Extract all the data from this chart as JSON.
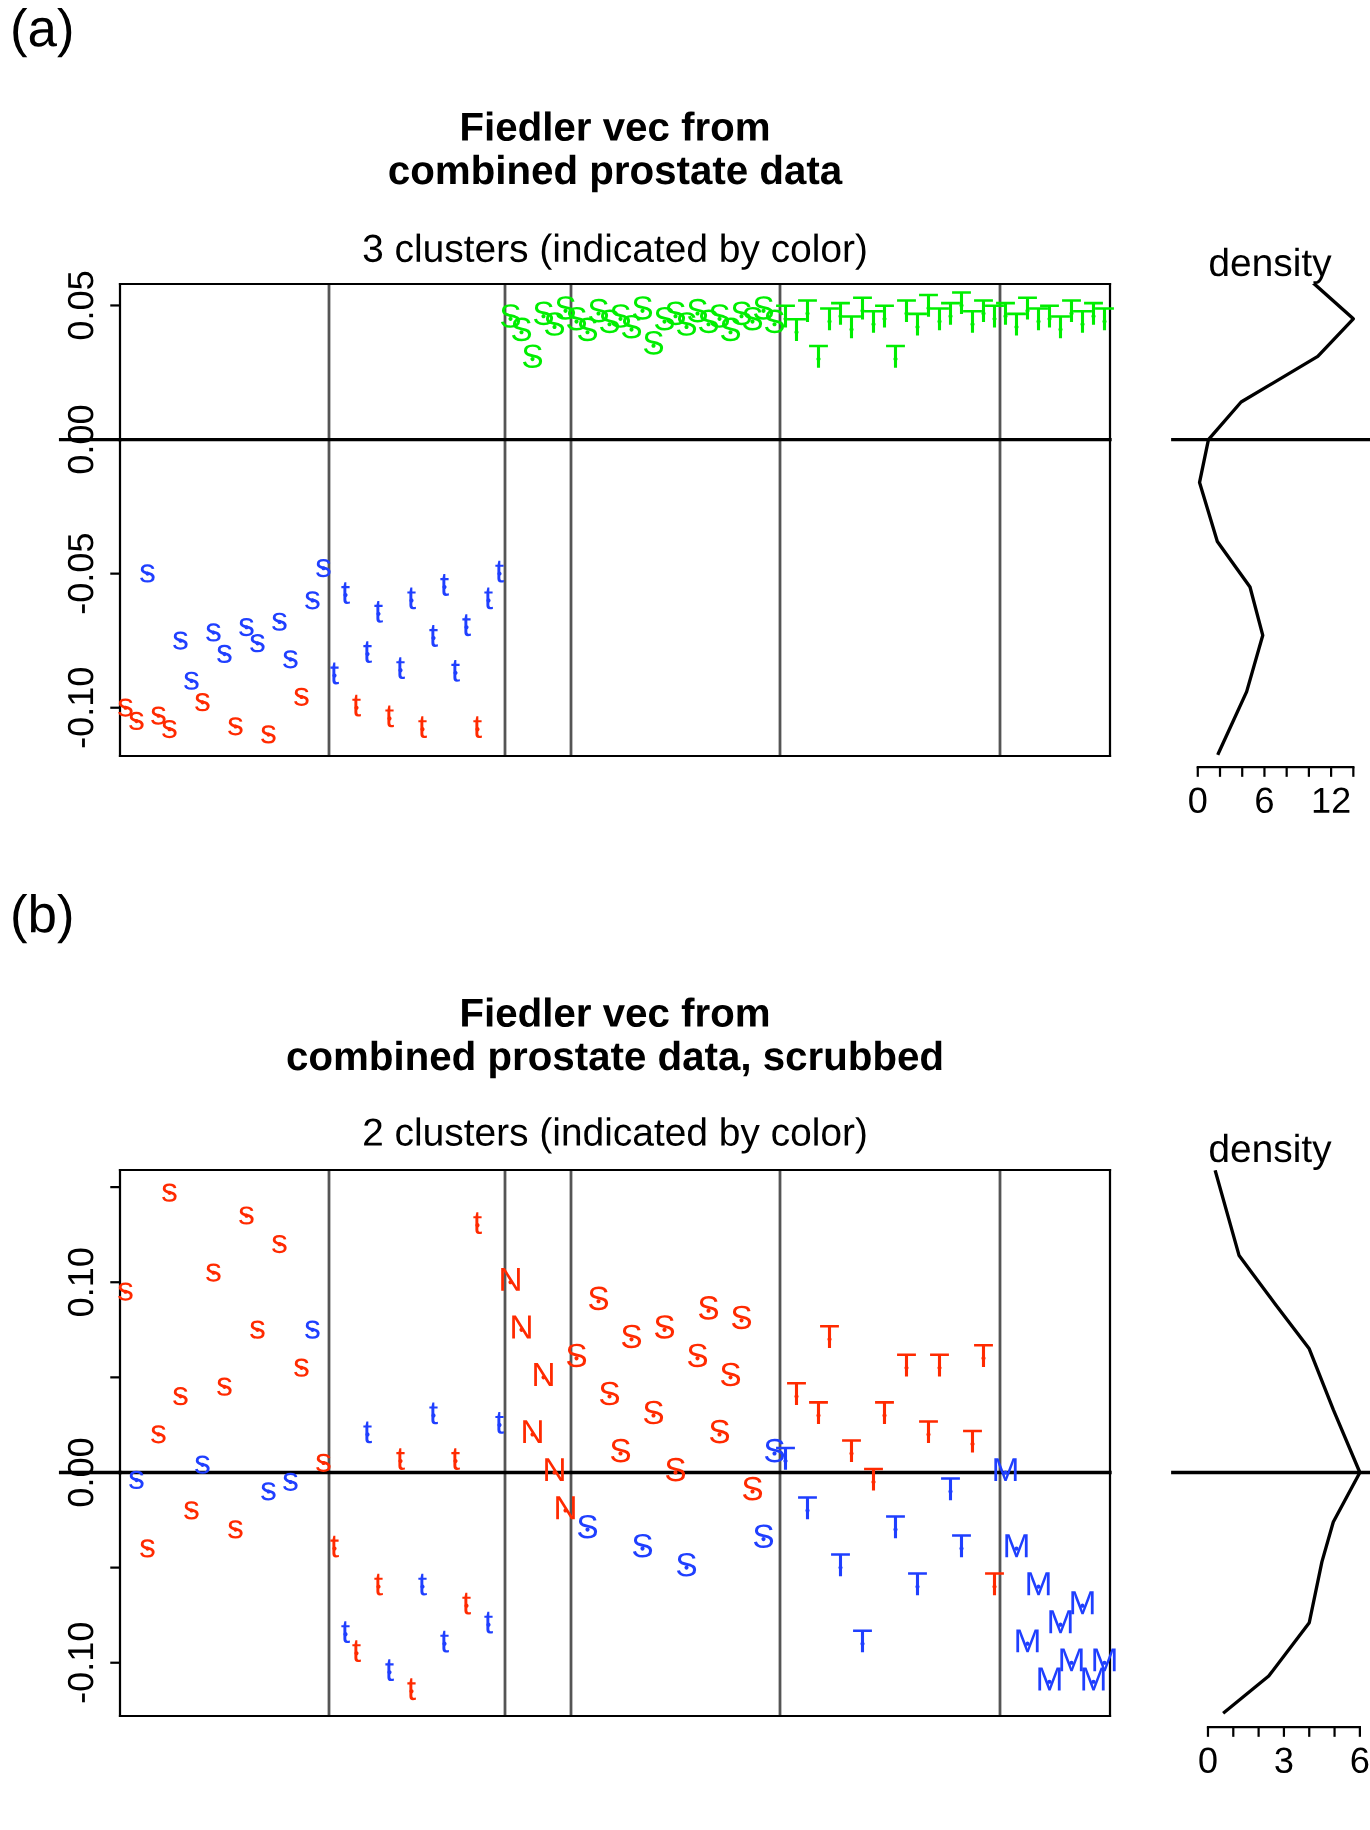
{
  "chart_data": [
    {
      "type": "scatter",
      "title": "Fiedler vec from\ncombined prostate data",
      "subtitle": "3 clusters (indicated by color)",
      "annotations": [
        "(a)"
      ],
      "categories": [
        null,
        null,
        null,
        null,
        null,
        null,
        null,
        null,
        null,
        null,
        null,
        null,
        null,
        null,
        null,
        null,
        null,
        null,
        null,
        null,
        null,
        null,
        null,
        null,
        null,
        null,
        null,
        null,
        null,
        null,
        null,
        null,
        null,
        null,
        null,
        null,
        null,
        null,
        null,
        null,
        null,
        null,
        null,
        null,
        null,
        null,
        null,
        null,
        null,
        null,
        null,
        null,
        null,
        null,
        null,
        null,
        null,
        null,
        null,
        null,
        null,
        null,
        null,
        null,
        null,
        null,
        null,
        null,
        null,
        null,
        null,
        null,
        null,
        null,
        null,
        null,
        null,
        null,
        null,
        null,
        null,
        null,
        null,
        null,
        null,
        null,
        null,
        null,
        null,
        null
      ],
      "values": [
        -0.1,
        -0.105,
        -0.05,
        -0.103,
        -0.108,
        -0.075,
        -0.09,
        -0.098,
        -0.072,
        -0.08,
        -0.107,
        -0.07,
        -0.076,
        -0.11,
        -0.068,
        -0.082,
        -0.096,
        -0.06,
        -0.048,
        -0.088,
        -0.058,
        -0.1,
        -0.08,
        -0.065,
        -0.104,
        -0.086,
        -0.06,
        -0.108,
        -0.074,
        -0.055,
        -0.087,
        -0.07,
        -0.108,
        -0.06,
        -0.05,
        0.045,
        0.04,
        0.03,
        0.046,
        0.042,
        0.048,
        0.044,
        0.04,
        0.047,
        0.043,
        0.045,
        0.041,
        0.048,
        0.035,
        0.044,
        0.046,
        0.042,
        0.047,
        0.043,
        0.045,
        0.04,
        0.046,
        0.044,
        0.048,
        0.043,
        0.045,
        0.04,
        0.047,
        0.03,
        0.044,
        0.046,
        0.041,
        0.048,
        0.043,
        0.045,
        0.03,
        0.047,
        0.042,
        0.049,
        0.044,
        0.046,
        0.05,
        0.043,
        0.047,
        0.045,
        0.046,
        0.042,
        0.048,
        0.044,
        0.045,
        0.041,
        0.047,
        0.043,
        0.046,
        0.044
      ],
      "colors": [
        "#ff2a00",
        "#ff2a00",
        "#1f3fff",
        "#ff2a00",
        "#ff2a00",
        "#1f3fff",
        "#1f3fff",
        "#ff2a00",
        "#1f3fff",
        "#1f3fff",
        "#ff2a00",
        "#1f3fff",
        "#1f3fff",
        "#ff2a00",
        "#1f3fff",
        "#1f3fff",
        "#ff2a00",
        "#1f3fff",
        "#1f3fff",
        "#1f3fff",
        "#1f3fff",
        "#ff2a00",
        "#1f3fff",
        "#1f3fff",
        "#ff2a00",
        "#1f3fff",
        "#1f3fff",
        "#ff2a00",
        "#1f3fff",
        "#1f3fff",
        "#1f3fff",
        "#1f3fff",
        "#ff2a00",
        "#1f3fff",
        "#1f3fff",
        "#00ee00",
        "#00ee00",
        "#00ee00",
        "#00ee00",
        "#00ee00",
        "#00ee00",
        "#00ee00",
        "#00ee00",
        "#00ee00",
        "#00ee00",
        "#00ee00",
        "#00ee00",
        "#00ee00",
        "#00ee00",
        "#00ee00",
        "#00ee00",
        "#00ee00",
        "#00ee00",
        "#00ee00",
        "#00ee00",
        "#00ee00",
        "#00ee00",
        "#00ee00",
        "#00ee00",
        "#00ee00",
        "#00ee00",
        "#00ee00",
        "#00ee00",
        "#00ee00",
        "#00ee00",
        "#00ee00",
        "#00ee00",
        "#00ee00",
        "#00ee00",
        "#00ee00",
        "#00ee00",
        "#00ee00",
        "#00ee00",
        "#00ee00",
        "#00ee00",
        "#00ee00",
        "#00ee00",
        "#00ee00",
        "#00ee00",
        "#00ee00",
        "#00ee00",
        "#00ee00",
        "#00ee00",
        "#00ee00",
        "#00ee00",
        "#00ee00",
        "#00ee00",
        "#00ee00",
        "#00ee00",
        "#00ee00"
      ],
      "value_labels": [
        "s",
        "s",
        "s",
        "s",
        "s",
        "s",
        "s",
        "s",
        "s",
        "s",
        "s",
        "s",
        "s",
        "s",
        "s",
        "s",
        "s",
        "s",
        "s",
        "t",
        "t",
        "t",
        "t",
        "t",
        "t",
        "t",
        "t",
        "t",
        "t",
        "t",
        "t",
        "t",
        "t",
        "t",
        "t",
        "S",
        "S",
        "S",
        "S",
        "S",
        "S",
        "S",
        "S",
        "S",
        "S",
        "S",
        "S",
        "S",
        "S",
        "S",
        "S",
        "S",
        "S",
        "S",
        "S",
        "S",
        "S",
        "S",
        "S",
        "S",
        "T",
        "T",
        "T",
        "T",
        "T",
        "T",
        "T",
        "T",
        "T",
        "T",
        "T",
        "T",
        "T",
        "T",
        "T",
        "T",
        "T",
        "T",
        "T",
        "T",
        "T",
        "T",
        "T",
        "T",
        "T",
        "T",
        "T",
        "T",
        "T",
        "T"
      ],
      "ylim": [
        -0.118,
        0.058
      ],
      "yticks": [
        {
          "value": -0.1,
          "label": "-0.10"
        },
        -0.05,
        {
          "value": 0.0,
          "label": "0.00"
        },
        0.05
      ],
      "tick_labels": "y",
      "ref_lines": [
        {
          "axis": "y",
          "value": 0,
          "color": "#000000"
        }
      ]
    },
    {
      "type": "line",
      "title": "density",
      "series": [
        {
          "color": "#000000",
          "x": [
            1.86,
            4.4,
            5.85,
            4.7,
            1.76,
            0.16,
            0.96,
            3.9,
            10.8,
            14.0,
            10.5
          ],
          "values": [
            -0.117,
            -0.094,
            -0.073,
            -0.055,
            -0.038,
            -0.016,
            0.0,
            0.014,
            0.031,
            0.045,
            0.058
          ]
        }
      ],
      "xlim": [
        -2.5,
        15.5
      ],
      "xticks": [
        0,
        {
          "value": 2,
          "label": null
        },
        {
          "value": 4,
          "label": null
        },
        6,
        {
          "value": 8,
          "label": null
        },
        {
          "value": 10,
          "label": null
        },
        12,
        {
          "value": 14,
          "label": null
        }
      ],
      "ylim": [
        -0.118,
        0.058
      ],
      "tick_labels": "x",
      "ref_lines": [
        {
          "axis": "y",
          "value": 0,
          "color": "#000000"
        }
      ]
    },
    {
      "type": "scatter",
      "title": "Fiedler vec from\ncombined prostate data, scrubbed",
      "subtitle": "2 clusters (indicated by color)",
      "annotations": [
        "(b)"
      ],
      "categories": [
        null,
        null,
        null,
        null,
        null,
        null,
        null,
        null,
        null,
        null,
        null,
        null,
        null,
        null,
        null,
        null,
        null,
        null,
        null,
        null,
        null,
        null,
        null,
        null,
        null,
        null,
        null,
        null,
        null,
        null,
        null,
        null,
        null,
        null,
        null,
        null,
        null,
        null,
        null,
        null,
        null,
        null,
        null,
        null,
        null,
        null,
        null,
        null,
        null,
        null,
        null,
        null,
        null,
        null,
        null,
        null,
        null,
        null,
        null,
        null,
        null,
        null,
        null,
        null,
        null,
        null,
        null,
        null,
        null,
        null,
        null,
        null,
        null,
        null,
        null,
        null,
        null,
        null,
        null,
        null,
        null,
        null,
        null,
        null,
        null,
        null,
        null,
        null,
        null,
        null
      ],
      "values": [
        0.095,
        -0.004,
        -0.04,
        0.02,
        0.147,
        0.04,
        -0.02,
        0.004,
        0.105,
        0.045,
        -0.03,
        0.135,
        0.075,
        -0.01,
        0.12,
        -0.005,
        0.055,
        0.075,
        0.005,
        -0.04,
        -0.085,
        -0.095,
        0.02,
        -0.06,
        -0.105,
        0.006,
        -0.115,
        -0.06,
        0.03,
        -0.09,
        0.006,
        -0.07,
        0.13,
        -0.08,
        0.025,
        0.1,
        0.075,
        0.02,
        0.05,
        0.0,
        -0.02,
        0.06,
        -0.03,
        0.09,
        0.04,
        0.01,
        0.07,
        -0.04,
        0.03,
        0.075,
        0.0,
        -0.05,
        0.06,
        0.085,
        0.02,
        0.05,
        0.08,
        -0.01,
        -0.035,
        0.01,
        0.006,
        0.04,
        -0.02,
        0.03,
        0.07,
        -0.05,
        0.01,
        -0.09,
        -0.005,
        0.03,
        -0.03,
        0.055,
        -0.06,
        0.02,
        0.055,
        -0.01,
        -0.04,
        0.015,
        0.06,
        -0.06,
        0.0,
        -0.04,
        -0.09,
        -0.06,
        -0.11,
        -0.08,
        -0.1,
        -0.07,
        -0.11,
        -0.1
      ],
      "colors": [
        "#ff2a00",
        "#1f3fff",
        "#ff2a00",
        "#ff2a00",
        "#ff2a00",
        "#ff2a00",
        "#ff2a00",
        "#1f3fff",
        "#ff2a00",
        "#ff2a00",
        "#ff2a00",
        "#ff2a00",
        "#ff2a00",
        "#1f3fff",
        "#ff2a00",
        "#1f3fff",
        "#ff2a00",
        "#1f3fff",
        "#ff2a00",
        "#ff2a00",
        "#1f3fff",
        "#ff2a00",
        "#1f3fff",
        "#ff2a00",
        "#1f3fff",
        "#ff2a00",
        "#ff2a00",
        "#1f3fff",
        "#1f3fff",
        "#1f3fff",
        "#ff2a00",
        "#ff2a00",
        "#ff2a00",
        "#1f3fff",
        "#1f3fff",
        "#ff2a00",
        "#ff2a00",
        "#ff2a00",
        "#ff2a00",
        "#ff2a00",
        "#ff2a00",
        "#ff2a00",
        "#1f3fff",
        "#ff2a00",
        "#ff2a00",
        "#ff2a00",
        "#ff2a00",
        "#1f3fff",
        "#ff2a00",
        "#ff2a00",
        "#ff2a00",
        "#1f3fff",
        "#ff2a00",
        "#ff2a00",
        "#ff2a00",
        "#ff2a00",
        "#ff2a00",
        "#ff2a00",
        "#1f3fff",
        "#1f3fff",
        "#1f3fff",
        "#ff2a00",
        "#1f3fff",
        "#ff2a00",
        "#ff2a00",
        "#1f3fff",
        "#ff2a00",
        "#1f3fff",
        "#ff2a00",
        "#ff2a00",
        "#1f3fff",
        "#ff2a00",
        "#1f3fff",
        "#ff2a00",
        "#ff2a00",
        "#1f3fff",
        "#1f3fff",
        "#ff2a00",
        "#ff2a00",
        "#ff2a00",
        "#1f3fff",
        "#1f3fff",
        "#1f3fff",
        "#1f3fff",
        "#1f3fff",
        "#1f3fff",
        "#1f3fff",
        "#1f3fff",
        "#1f3fff",
        "#1f3fff"
      ],
      "value_labels": [
        "s",
        "s",
        "s",
        "s",
        "s",
        "s",
        "s",
        "s",
        "s",
        "s",
        "s",
        "s",
        "s",
        "s",
        "s",
        "s",
        "s",
        "s",
        "s",
        "t",
        "t",
        "t",
        "t",
        "t",
        "t",
        "t",
        "t",
        "t",
        "t",
        "t",
        "t",
        "t",
        "t",
        "t",
        "t",
        "N",
        "N",
        "N",
        "N",
        "N",
        "N",
        "S",
        "S",
        "S",
        "S",
        "S",
        "S",
        "S",
        "S",
        "S",
        "S",
        "S",
        "S",
        "S",
        "S",
        "S",
        "S",
        "S",
        "S",
        "S",
        "T",
        "T",
        "T",
        "T",
        "T",
        "T",
        "T",
        "T",
        "T",
        "T",
        "T",
        "T",
        "T",
        "T",
        "T",
        "T",
        "T",
        "T",
        "T",
        "T",
        "M",
        "M",
        "M",
        "M",
        "M",
        "M",
        "M",
        "M",
        "M",
        "M"
      ],
      "ylim": [
        -0.128,
        0.159
      ],
      "yticks": [
        {
          "value": -0.1,
          "label": "-0.10"
        },
        {
          "value": -0.05,
          "label": null
        },
        {
          "value": 0.0,
          "label": "0.00"
        },
        {
          "value": 0.05,
          "label": null
        },
        {
          "value": 0.1,
          "label": "0.10"
        },
        {
          "value": 0.15,
          "label": null
        }
      ],
      "tick_labels": "y",
      "ref_lines": [
        {
          "axis": "y",
          "value": 0,
          "color": "#000000"
        }
      ]
    },
    {
      "type": "line",
      "title": "density",
      "series": [
        {
          "color": "#000000",
          "x": [
            0.65,
            2.4,
            4.0,
            4.5,
            4.95,
            6.0,
            4.95,
            4.0,
            2.63,
            1.23,
            0.3
          ],
          "values": [
            -0.126,
            -0.107,
            -0.079,
            -0.047,
            -0.026,
            0.0,
            0.033,
            0.065,
            0.089,
            0.114,
            0.158
          ]
        }
      ],
      "xlim": [
        -1.5,
        6.4
      ],
      "xticks": [
        0,
        {
          "value": 1,
          "label": null
        },
        {
          "value": 2,
          "label": null
        },
        3,
        {
          "value": 4,
          "label": null
        },
        {
          "value": 5,
          "label": null
        },
        6
      ],
      "ylim": [
        -0.128,
        0.159
      ],
      "tick_labels": "x",
      "ref_lines": [
        {
          "axis": "y",
          "value": 0,
          "color": "#000000"
        }
      ]
    }
  ]
}
